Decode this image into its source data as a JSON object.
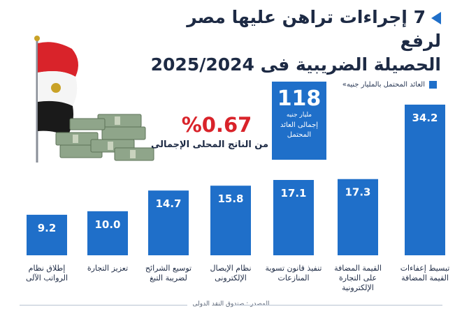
{
  "title_line1": "7 إجراءات تراهن عليها مصر لرفع",
  "title_line2": "الحصيلة الضريبية فى 2025/2024",
  "legend_label": "العائد المحتمل بالمليار جنيه»",
  "total": {
    "value": "118",
    "unit": "مليار جنيه",
    "label": "إجمالى العائد المحتمل"
  },
  "gdp_share": {
    "value": "%0.67",
    "label": "من الناتج المحلى الإجمالى"
  },
  "source": "المصدر : صندوق النقد الدولى",
  "colors": {
    "bar": "#1f6fc9",
    "title": "#1d2a44",
    "highlight": "#d9232a"
  },
  "chart_data": {
    "type": "bar",
    "categories": [
      "إطلاق نظام الرواتب الآلى",
      "تعزيز التجارة",
      "توسيع الشرائح لضريبة التبغ",
      "نظام الإيصال الإلكترونى",
      "تنفيذ قانون تسوية المنازعات",
      "القيمة المضافة على التجارة الإلكترونية",
      "تبسيط إعفاءات القيمة المضافة"
    ],
    "values": [
      9.2,
      10.0,
      14.7,
      15.8,
      17.1,
      17.3,
      34.2
    ],
    "value_labels": [
      "9.2",
      "10.0",
      "14.7",
      "15.8",
      "17.1",
      "17.3",
      "34.2"
    ],
    "legend": [
      "العائد المحتمل بالمليار جنيه»"
    ],
    "ylim": [
      0,
      34.2
    ]
  }
}
